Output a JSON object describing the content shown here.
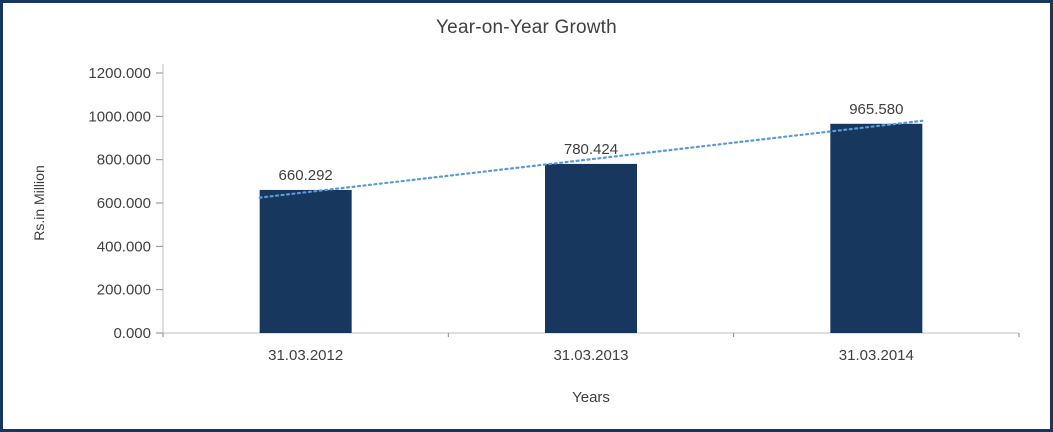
{
  "chart_data": {
    "type": "bar",
    "title": "Year-on-Year Growth",
    "xlabel": "Years",
    "ylabel": "Rs.in Million",
    "categories": [
      "31.03.2012",
      "31.03.2013",
      "31.03.2014"
    ],
    "values": [
      660.292,
      780.424,
      965.58
    ],
    "value_labels": [
      "660.292",
      "780.424",
      "965.580"
    ],
    "y_ticks": [
      0,
      200,
      400,
      600,
      800,
      1000,
      1200
    ],
    "y_tick_labels": [
      "0.000",
      "200.000",
      "400.000",
      "600.000",
      "800.000",
      "1000.000",
      "1200.000"
    ],
    "ylim": [
      0,
      1200
    ],
    "grid": false,
    "legend": "none",
    "trendline": true,
    "colors": {
      "bar": "#17375E",
      "trendline": "#5B9BD5",
      "axis_line": "#BFBFBF",
      "tick_mark": "#898989",
      "text": "#404040",
      "frame_border": "#17375E",
      "background": "#FFFFFF"
    }
  }
}
